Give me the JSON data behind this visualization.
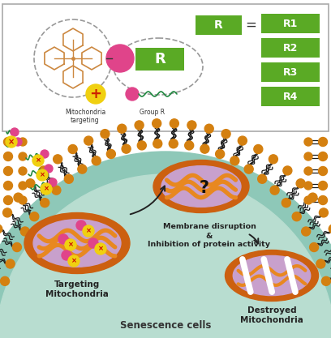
{
  "fig_width": 4.08,
  "fig_height": 4.17,
  "dpi": 100,
  "bg_color": "#ffffff",
  "green_color": "#5aaa25",
  "orange_mito": "#cc6010",
  "orange_inner": "#e88820",
  "pink_color": "#e0448a",
  "yellow_drug": "#f0d010",
  "red_x": "#cc0000",
  "cell_bg": "#8ec8b8",
  "cell_bg2": "#b8ddd0",
  "membrane_head": "#d48010",
  "mito_lavender": "#c8a0cc",
  "teal_line": "#208840",
  "hex_color": "#cc8840",
  "title_bottom": "Senescence cells",
  "label_targeting": "Targeting\nMitochondria",
  "label_destroyed": "Destroyed\nMitochondria",
  "label_membrane_l1": "Membrane disruption",
  "label_membrane_l2": "&",
  "label_membrane_l3": "Inhibition of protein activity",
  "label_mito_target": "Mitochondria\ntargeting",
  "label_group_r": "Group R",
  "r_labels": [
    "R1",
    "R2",
    "R3",
    "R4"
  ]
}
